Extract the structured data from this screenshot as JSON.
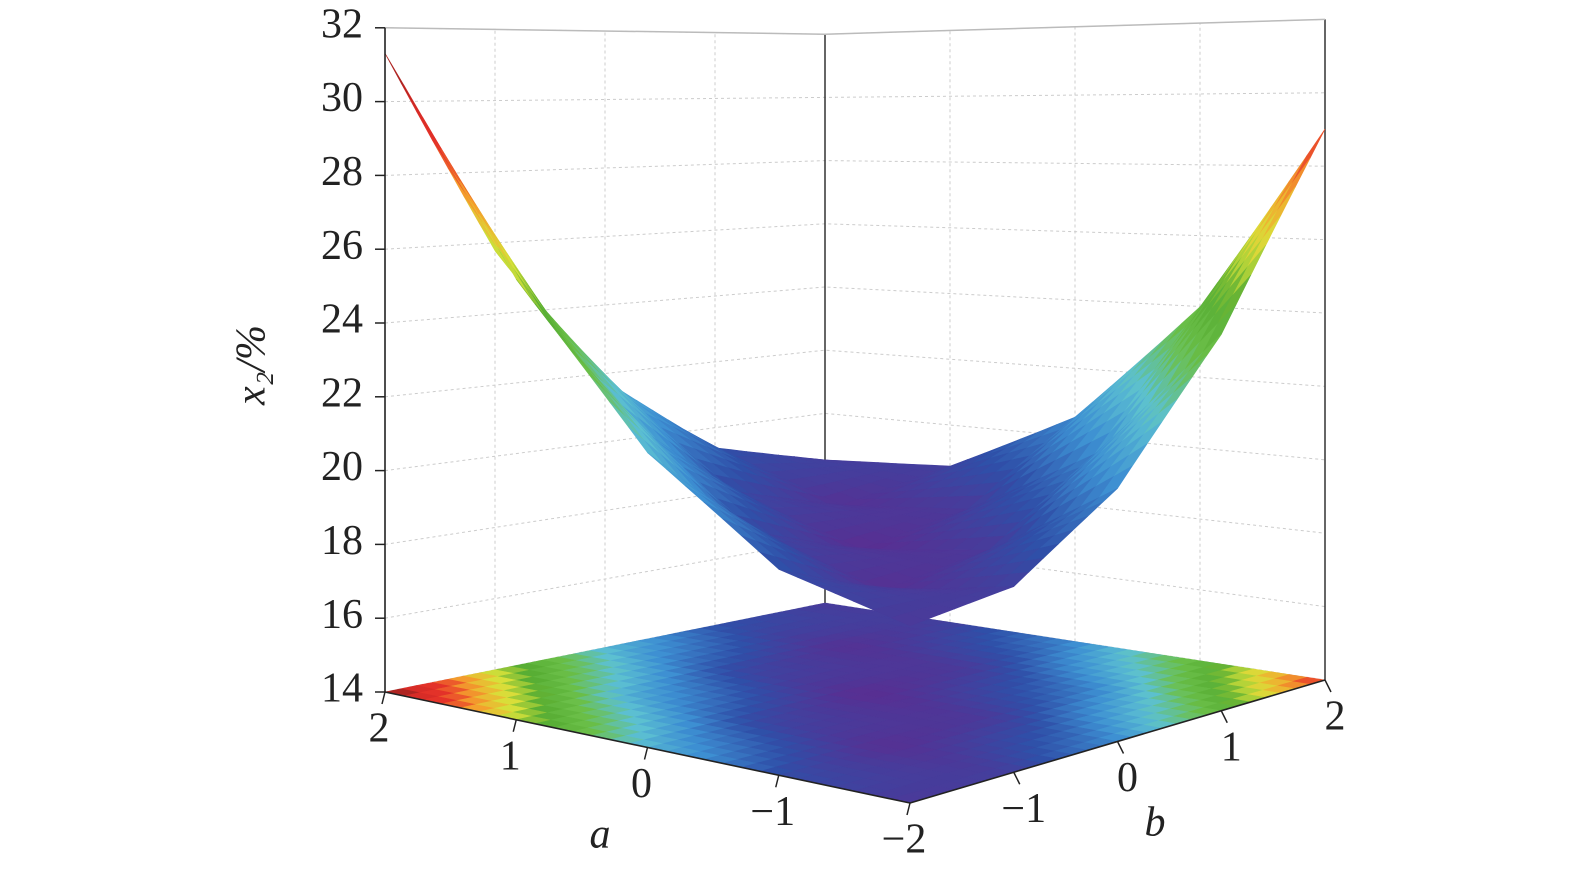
{
  "chart_data": {
    "type": "surface",
    "xlabel": "a",
    "ylabel": "b",
    "zlabel": "x₂/%",
    "x": [
      -2,
      -1,
      0,
      1,
      2
    ],
    "y": [
      -2,
      -1,
      0,
      1,
      2
    ],
    "z": [
      [
        18.43,
        18.74,
        20.6,
        24.03,
        29.01
      ],
      [
        19.25,
        18.1,
        18.5,
        20.47,
        23.99
      ],
      [
        21.67,
        19.06,
        18,
        18.51,
        20.57
      ],
      [
        25.69,
        21.62,
        19.1,
        18.15,
        18.75
      ],
      [
        31.31,
        25.78,
        21.8,
        19.39,
        18.53
      ]
    ],
    "xlim": [
      -2,
      2
    ],
    "ylim": [
      -2,
      2
    ],
    "zlim": [
      14,
      32
    ],
    "xticks": [
      2,
      1,
      0,
      {
        "value": -1,
        "label": "−1"
      },
      {
        "value": -2,
        "label": "−2"
      }
    ],
    "yticks": [
      {
        "value": -1,
        "label": "−1"
      },
      0,
      1,
      2
    ],
    "zticks": [
      14,
      16,
      18,
      20,
      22,
      24,
      26,
      28,
      30,
      32
    ],
    "grid": true,
    "colormap": [
      "#5a2d91",
      "#2f4fa8",
      "#3d8fd2",
      "#5cc0d2",
      "#6cc04a",
      "#58ae34",
      "#d7e13a",
      "#f4a52d",
      "#e8352a",
      "#d42a26",
      "#7a1d1d"
    ]
  }
}
